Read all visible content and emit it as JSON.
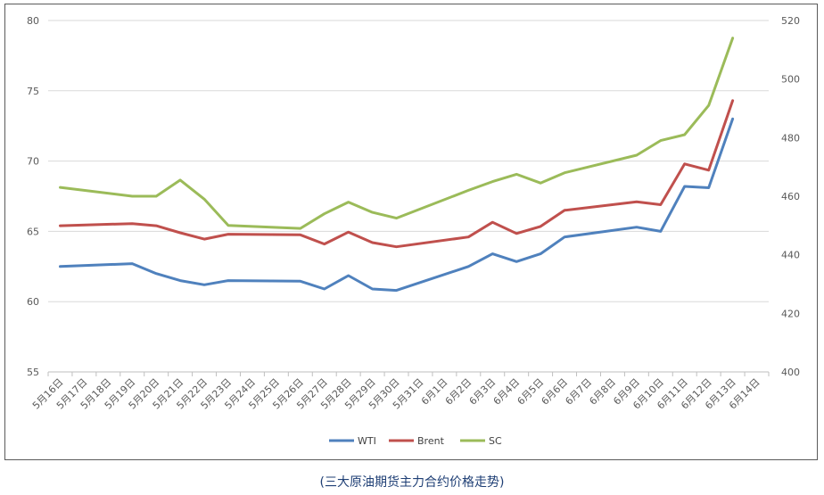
{
  "caption": "(三大原油期货主力合约价格走势)",
  "chart_data": {
    "type": "line",
    "x": [
      "5月16日",
      "5月17日",
      "5月18日",
      "5月19日",
      "5月20日",
      "5月21日",
      "5月22日",
      "5月23日",
      "5月24日",
      "5月25日",
      "5月26日",
      "5月27日",
      "5月28日",
      "5月29日",
      "5月30日",
      "5月31日",
      "6月1日",
      "6月2日",
      "6月3日",
      "6月4日",
      "6月5日",
      "6月6日",
      "6月7日",
      "6月8日",
      "6月9日",
      "6月10日",
      "6月11日",
      "6月12日",
      "6月13日",
      "6月14日"
    ],
    "y_left": {
      "min": 55,
      "max": 80,
      "ticks": [
        55,
        60,
        65,
        70,
        75,
        80
      ]
    },
    "y_right": {
      "min": 400,
      "max": 520,
      "ticks": [
        400,
        420,
        440,
        460,
        480,
        500,
        520
      ]
    },
    "series": [
      {
        "name": "WTI",
        "color": "#4f81bd",
        "axis": "left",
        "points": [
          [
            0,
            62.5
          ],
          [
            3,
            62.7
          ],
          [
            4,
            62.0
          ],
          [
            5,
            61.5
          ],
          [
            6,
            61.2
          ],
          [
            7,
            61.5
          ],
          [
            10,
            61.45
          ],
          [
            11,
            60.9
          ],
          [
            12,
            61.85
          ],
          [
            13,
            60.9
          ],
          [
            14,
            60.8
          ],
          [
            17,
            62.5
          ],
          [
            18,
            63.4
          ],
          [
            19,
            62.85
          ],
          [
            20,
            63.4
          ],
          [
            21,
            64.6
          ],
          [
            24,
            65.3
          ],
          [
            25,
            65.0
          ],
          [
            26,
            68.2
          ],
          [
            27,
            68.1
          ],
          [
            28,
            73.0
          ]
        ]
      },
      {
        "name": "Brent",
        "color": "#c0504d",
        "axis": "left",
        "points": [
          [
            0,
            65.4
          ],
          [
            3,
            65.55
          ],
          [
            4,
            65.4
          ],
          [
            5,
            64.9
          ],
          [
            6,
            64.45
          ],
          [
            7,
            64.8
          ],
          [
            10,
            64.75
          ],
          [
            11,
            64.1
          ],
          [
            12,
            64.95
          ],
          [
            13,
            64.2
          ],
          [
            14,
            63.9
          ],
          [
            17,
            64.6
          ],
          [
            18,
            65.65
          ],
          [
            19,
            64.85
          ],
          [
            20,
            65.35
          ],
          [
            21,
            66.5
          ],
          [
            24,
            67.1
          ],
          [
            25,
            66.9
          ],
          [
            26,
            69.8
          ],
          [
            27,
            69.35
          ],
          [
            28,
            74.3
          ]
        ]
      },
      {
        "name": "SC",
        "color": "#9bbb59",
        "axis": "right",
        "points": [
          [
            0,
            463
          ],
          [
            3,
            460
          ],
          [
            4,
            460
          ],
          [
            5,
            465.5
          ],
          [
            6,
            459
          ],
          [
            7,
            450
          ],
          [
            10,
            449
          ],
          [
            11,
            454
          ],
          [
            12,
            458
          ],
          [
            13,
            454.5
          ],
          [
            14,
            452.5
          ],
          [
            17,
            462
          ],
          [
            18,
            465
          ],
          [
            19,
            467.5
          ],
          [
            20,
            464.5
          ],
          [
            21,
            468
          ],
          [
            24,
            474
          ],
          [
            25,
            479
          ],
          [
            26,
            481
          ],
          [
            27,
            491
          ],
          [
            28,
            514
          ]
        ]
      }
    ],
    "legend": [
      "WTI",
      "Brent",
      "SC"
    ],
    "legend_position": "bottom",
    "grid": true
  }
}
